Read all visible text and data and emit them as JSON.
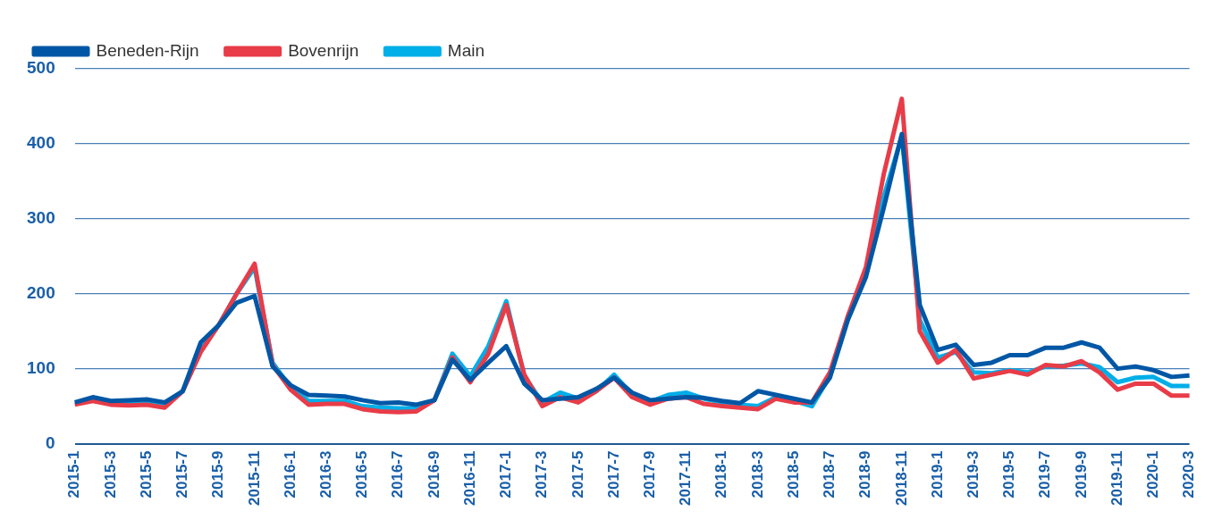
{
  "chart_data": {
    "type": "line",
    "categories": [
      "2015-1",
      null,
      "2015-3",
      null,
      "2015-5",
      null,
      "2015-7",
      null,
      "2015-9",
      null,
      "2015-11",
      null,
      "2016-1",
      null,
      "2016-3",
      null,
      "2016-5",
      null,
      "2016-7",
      null,
      "2016-9",
      null,
      "2016-11",
      null,
      "2017-1",
      null,
      "2017-3",
      null,
      "2017-5",
      null,
      "2017-7",
      null,
      "2017-9",
      null,
      "2017-11",
      null,
      "2018-1",
      null,
      "2018-3",
      null,
      "2018-5",
      null,
      "2018-7",
      null,
      "2018-9",
      null,
      "2018-11",
      null,
      "2019-1",
      null,
      "2019-3",
      null,
      "2019-5",
      null,
      "2019-7",
      null,
      "2019-9",
      null,
      "2019-11",
      null,
      "2020-1",
      null,
      "2020-3"
    ],
    "series": [
      {
        "name": "Beneden-Rijn",
        "color": "#0057a5",
        "values": [
          55,
          62,
          57,
          58,
          59,
          55,
          70,
          135,
          158,
          188,
          197,
          103,
          78,
          65,
          64,
          63,
          58,
          54,
          55,
          52,
          58,
          112,
          85,
          108,
          130,
          80,
          58,
          60,
          62,
          73,
          88,
          68,
          58,
          60,
          62,
          61,
          57,
          54,
          70,
          65,
          60,
          55,
          88,
          165,
          222,
          315,
          413,
          185,
          125,
          132,
          105,
          108,
          118,
          118,
          128,
          128,
          135,
          128,
          100,
          103,
          98,
          89,
          91
        ]
      },
      {
        "name": "Bovenrijn",
        "color": "#e83c48",
        "values": [
          52,
          57,
          52,
          51,
          52,
          48,
          70,
          122,
          158,
          200,
          240,
          105,
          72,
          52,
          53,
          53,
          46,
          43,
          42,
          43,
          58,
          115,
          82,
          120,
          185,
          92,
          50,
          62,
          55,
          70,
          88,
          62,
          52,
          60,
          62,
          53,
          50,
          48,
          46,
          60,
          55,
          55,
          95,
          170,
          235,
          360,
          460,
          150,
          108,
          125,
          87,
          92,
          97,
          92,
          105,
          103,
          110,
          95,
          72,
          80,
          80,
          64,
          64
        ]
      },
      {
        "name": "Main",
        "color": "#00aee8",
        "values": [
          null,
          null,
          54,
          53,
          54,
          50,
          70,
          125,
          158,
          200,
          235,
          108,
          75,
          57,
          57,
          57,
          50,
          48,
          47,
          47,
          58,
          120,
          90,
          130,
          190,
          90,
          55,
          68,
          60,
          70,
          92,
          65,
          56,
          65,
          68,
          60,
          55,
          52,
          50,
          62,
          57,
          50,
          90,
          170,
          230,
          330,
          410,
          165,
          115,
          122,
          95,
          94,
          98,
          95,
          103,
          104,
          107,
          102,
          82,
          88,
          89,
          77,
          77
        ]
      }
    ],
    "ylim": [
      0,
      500
    ],
    "yticks": [
      0,
      100,
      200,
      300,
      400,
      500
    ],
    "grid": "y",
    "legend": "top",
    "marker": "none",
    "line_style": "solid"
  }
}
